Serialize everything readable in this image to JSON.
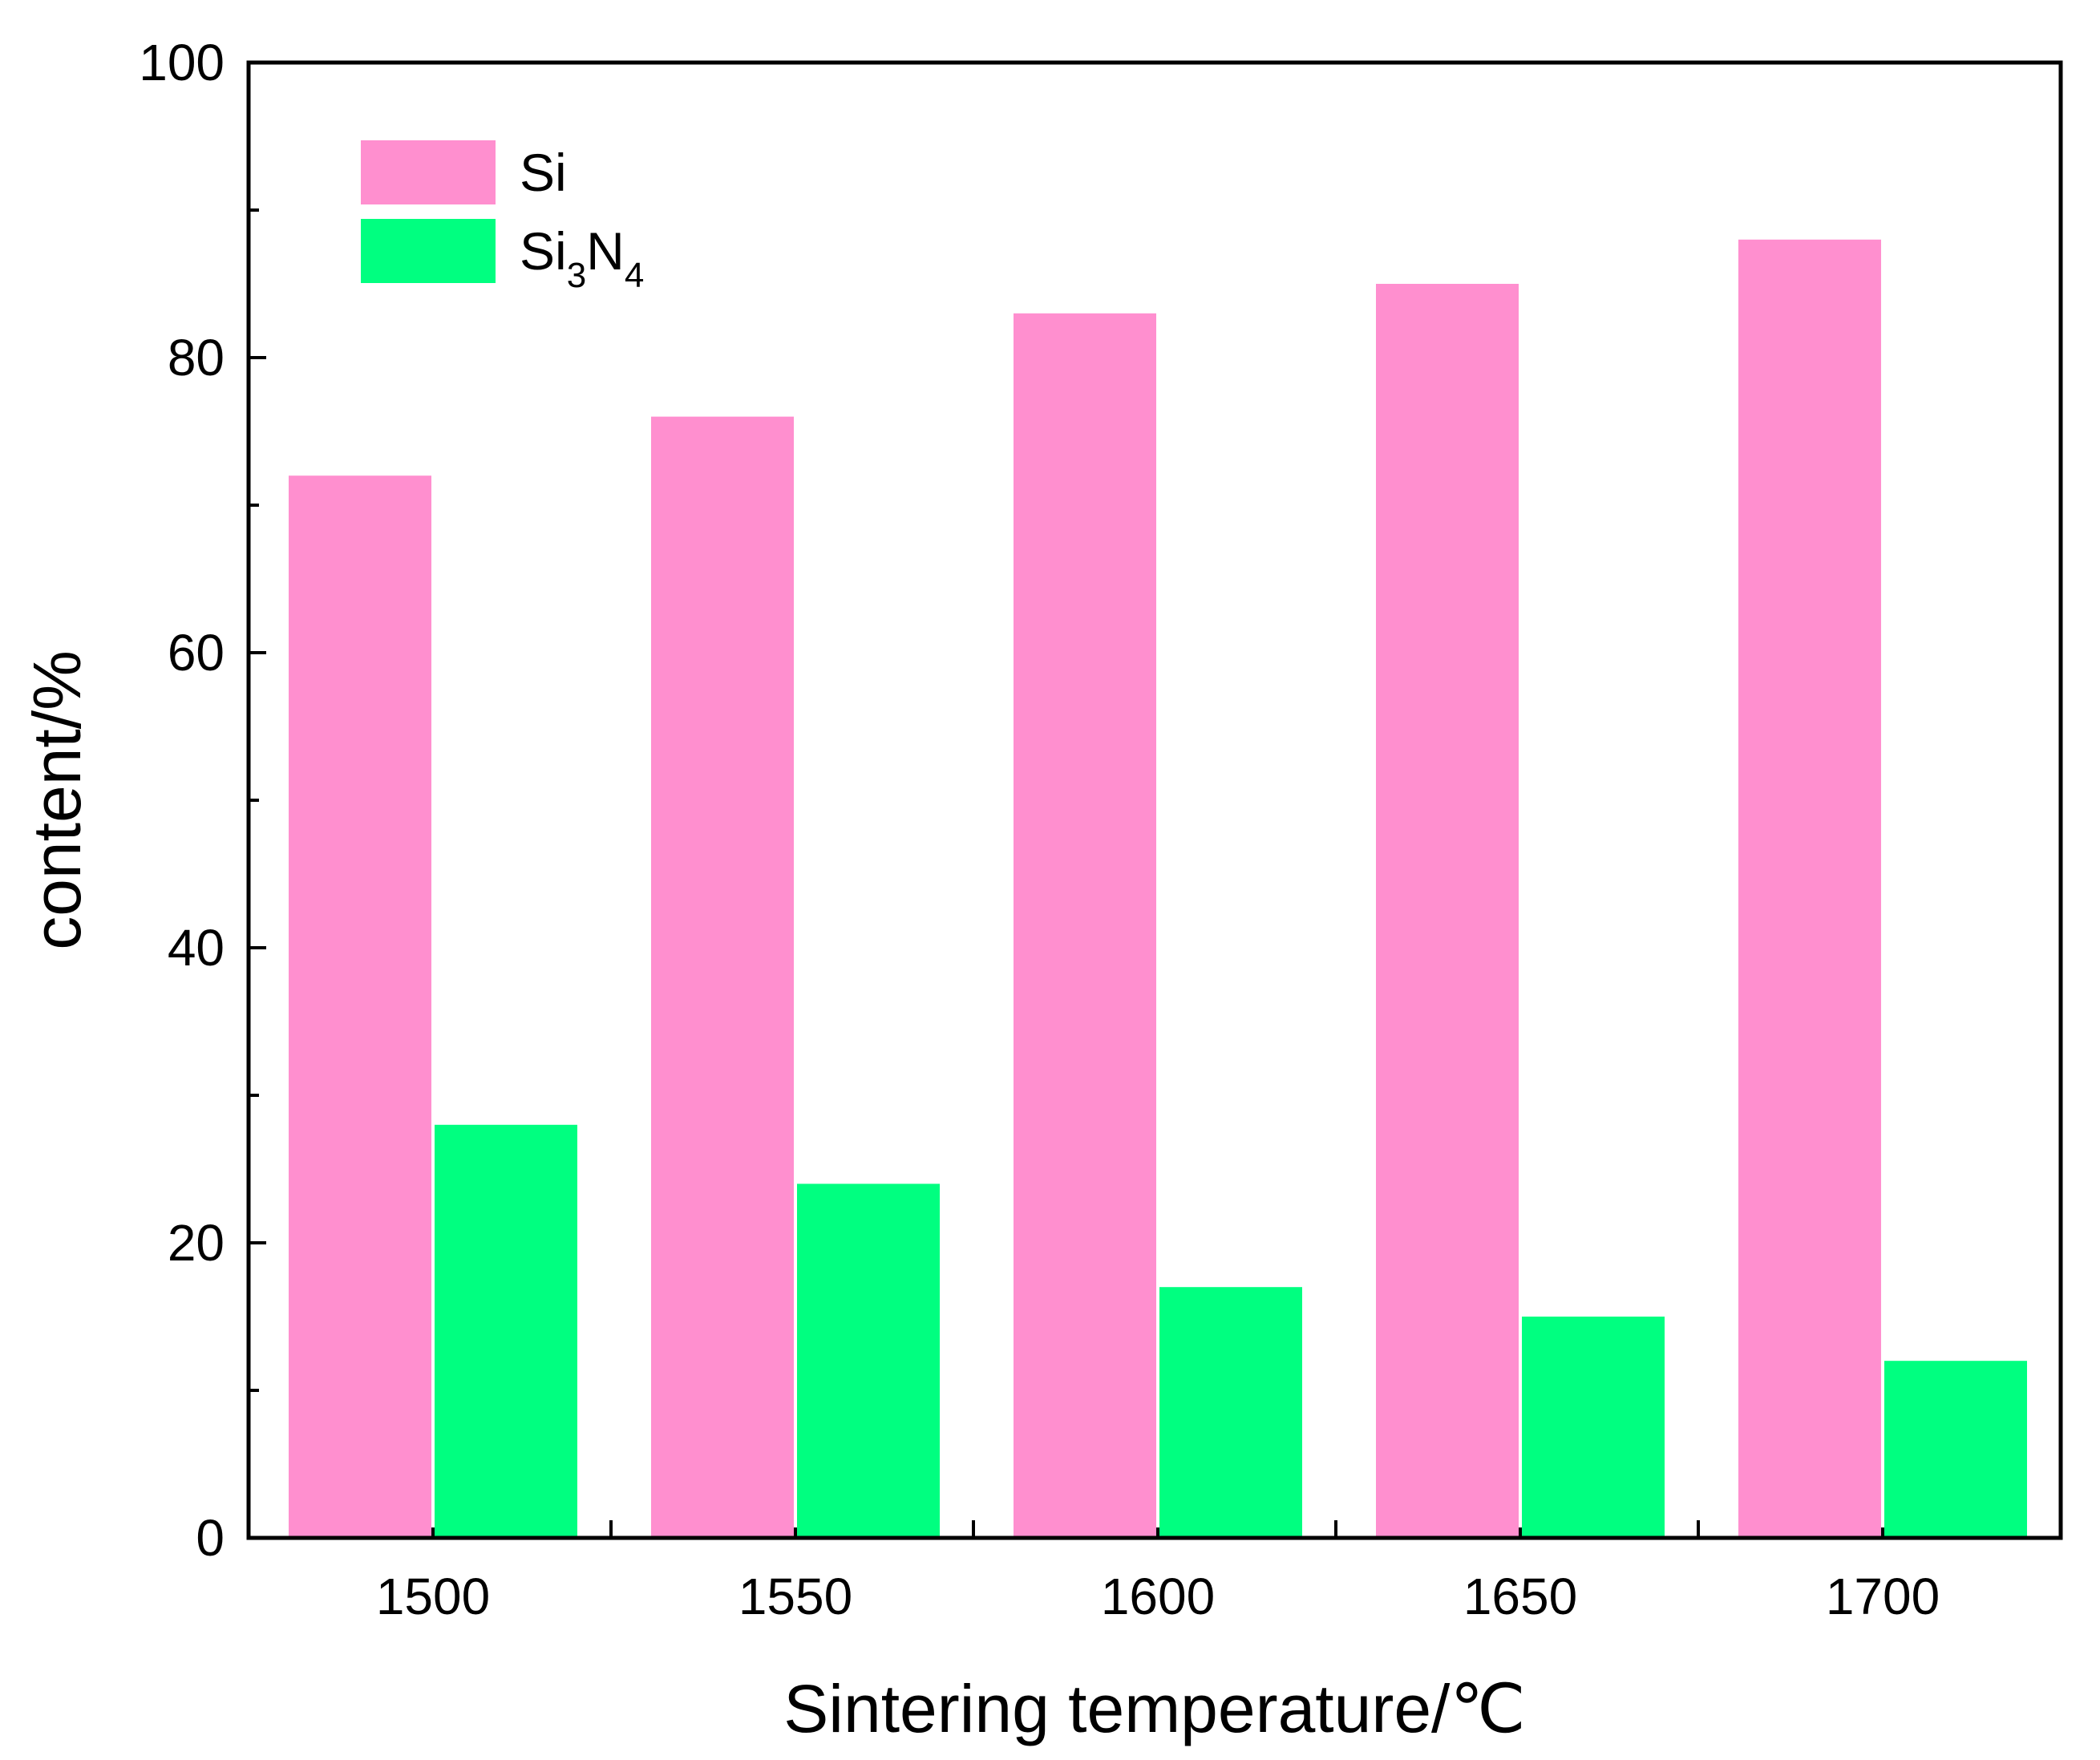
{
  "chart_data": {
    "type": "bar",
    "categories": [
      "1500",
      "1550",
      "1600",
      "1650",
      "1700"
    ],
    "series": [
      {
        "name": "Si",
        "name_base": "Si",
        "values": [
          72,
          76,
          83,
          85,
          88
        ],
        "color": "#FF8FCF"
      },
      {
        "name": "Si3N4",
        "name_parts": [
          "Si",
          "3",
          "N",
          "4"
        ],
        "values": [
          28,
          24,
          17,
          15,
          12
        ],
        "color": "#00FF80"
      }
    ],
    "xlabel": "Sintering temperature/℃",
    "ylabel": "content/%",
    "ylim": [
      0,
      100
    ],
    "yticks": [
      "0",
      "20",
      "40",
      "60",
      "80",
      "100"
    ],
    "legend_position": "top-left",
    "grid": false
  }
}
